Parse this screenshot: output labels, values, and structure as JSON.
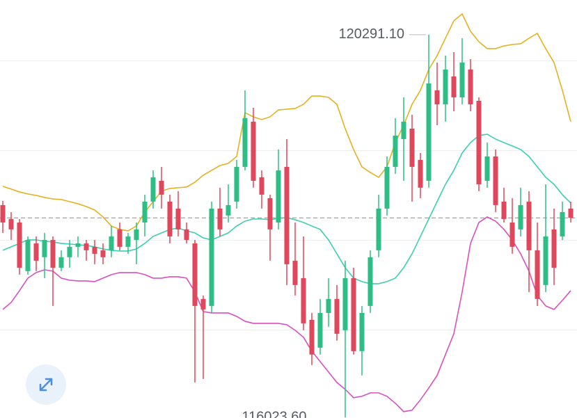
{
  "chart_data": {
    "type": "candlestick",
    "ylim": [
      116019,
      120678
    ],
    "gridlines": [
      117000,
      118000,
      119000,
      120000
    ],
    "last_price": 118250,
    "up_color": "#2ebd85",
    "down_color": "#e0475a",
    "open": [
      118392,
      118237,
      118198,
      117656,
      117965,
      117811,
      118004,
      117694,
      117811,
      117927,
      117965,
      117927,
      117888,
      117888,
      118121,
      117927,
      118004,
      118198,
      118431,
      118663,
      118431,
      118353,
      118121,
      117965,
      117346,
      117268,
      118353,
      118276,
      118431,
      118818,
      119322,
      118702,
      118469,
      118198,
      118818,
      117772,
      117578,
      117113,
      116803,
      117190,
      117346,
      116997,
      117578,
      116764,
      117268,
      117888,
      118353,
      118818,
      119128,
      119244,
      118896,
      118663,
      119671,
      119515,
      119826,
      119593,
      119903,
      119554,
      118663,
      118934,
      118431,
      118198,
      118121,
      118431,
      117888,
      117501,
      118121,
      118043,
      118353
    ],
    "high": [
      118440,
      118314,
      118237,
      118043,
      118043,
      118082,
      118043,
      117888,
      118004,
      118043,
      118004,
      118004,
      117965,
      118159,
      118198,
      118082,
      118198,
      118508,
      118779,
      118818,
      118508,
      118547,
      118198,
      118004,
      117384,
      118431,
      118586,
      118624,
      118896,
      119671,
      119477,
      118779,
      118508,
      119012,
      119128,
      118198,
      118043,
      117190,
      117346,
      117578,
      117501,
      117772,
      117694,
      117268,
      117888,
      118508,
      118934,
      119361,
      119593,
      119399,
      118973,
      120291.1,
      119981,
      120058,
      120097,
      120252,
      120019,
      119593,
      119089,
      119012,
      118586,
      118469,
      118586,
      118547,
      118198,
      118624,
      118353,
      118431,
      118431
    ],
    "low": [
      118082,
      118004,
      117617,
      117617,
      117656,
      117578,
      117268,
      117656,
      117694,
      117811,
      117772,
      117733,
      117733,
      117811,
      117888,
      117849,
      117733,
      118043,
      118353,
      118353,
      117965,
      118043,
      117965,
      116415,
      116454,
      117190,
      118043,
      118198,
      118353,
      118779,
      118586,
      118353,
      117772,
      118121,
      117501,
      117384,
      116997,
      116609,
      116726,
      117036,
      116881,
      116023.6,
      116726,
      116493,
      117190,
      117811,
      118276,
      118740,
      118663,
      118431,
      118469,
      118586,
      119283,
      119322,
      119438,
      119515,
      119438,
      118547,
      118586,
      118314,
      118198,
      117849,
      118043,
      117423,
      117268,
      117423,
      117501,
      118004,
      118198
    ],
    "close": [
      118198,
      118121,
      117694,
      118004,
      117772,
      118004,
      117694,
      117811,
      117927,
      117965,
      117888,
      117849,
      117811,
      118043,
      117927,
      118043,
      118121,
      118431,
      118702,
      118508,
      118043,
      118121,
      118004,
      117268,
      117229,
      118353,
      118121,
      118392,
      118818,
      119361,
      118663,
      118508,
      118121,
      118779,
      117733,
      117501,
      117074,
      116726,
      117190,
      117346,
      116958,
      117578,
      116764,
      117190,
      117811,
      118353,
      118818,
      119167,
      119322,
      118818,
      118586,
      119748,
      119515,
      119903,
      119593,
      119981,
      119515,
      118624,
      118934,
      118392,
      118237,
      117927,
      118392,
      117888,
      117346,
      118043,
      117694,
      118314,
      118250
    ],
    "bands": [
      {
        "color": "#e6b120",
        "values": [
          118601,
          118570,
          118539,
          118516,
          118500,
          118477,
          118461,
          118454,
          118431,
          118407,
          118376,
          118337,
          118260,
          118159,
          118121,
          118105,
          118159,
          118314,
          118431,
          118547,
          118578,
          118586,
          118593,
          118647,
          118725,
          118779,
          118833,
          118857,
          118934,
          119422,
          119376,
          119345,
          119376,
          119453,
          119461,
          119469,
          119515,
          119608,
          119608,
          119593,
          119515,
          119244,
          119012,
          118818,
          118756,
          118702,
          118818,
          119089,
          119283,
          119515,
          119671,
          119903,
          120058,
          120252,
          120445,
          120523,
          120329,
          120213,
          120136,
          120136,
          120166,
          120182,
          120190,
          120252,
          120306,
          120136,
          119981,
          119671,
          119322
        ]
      },
      {
        "color": "#3ccfb0",
        "values": [
          117888,
          117927,
          117965,
          118004,
          118004,
          117989,
          117981,
          117965,
          117958,
          117950,
          117942,
          117927,
          117903,
          117888,
          117880,
          117880,
          117903,
          117965,
          118043,
          118082,
          118121,
          118136,
          118105,
          118082,
          118027,
          118004,
          118043,
          118082,
          118159,
          118213,
          118237,
          118237,
          118229,
          118244,
          118252,
          118229,
          118198,
          118159,
          118121,
          118004,
          117849,
          117694,
          117578,
          117539,
          117516,
          117516,
          117539,
          117578,
          117694,
          117849,
          118043,
          118237,
          118431,
          118624,
          118779,
          118973,
          119089,
          119167,
          119182,
          119128,
          119089,
          119051,
          119012,
          118934,
          118818,
          118702,
          118624,
          118508,
          118415
        ]
      },
      {
        "color": "#d94fbf",
        "values": [
          117229,
          117307,
          117438,
          117578,
          117640,
          117671,
          117656,
          117578,
          117555,
          117547,
          117547,
          117539,
          117578,
          117617,
          117640,
          117640,
          117640,
          117617,
          117578,
          117578,
          117593,
          117593,
          117578,
          117423,
          117206,
          117190,
          117190,
          117190,
          117152,
          117097,
          117074,
          117074,
          117074,
          117074,
          117059,
          116997,
          116919,
          116764,
          116648,
          116532,
          116415,
          116338,
          116245,
          116261,
          116299,
          116299,
          116261,
          116183,
          116090,
          116106,
          116222,
          116353,
          116493,
          116726,
          116958,
          117423,
          117965,
          118198,
          118260,
          118213,
          118121,
          118004,
          117849,
          117656,
          117384,
          117268,
          117229,
          117330,
          117438
        ]
      }
    ],
    "high_label": {
      "value": 120291.1,
      "label": "120291.10"
    },
    "low_label": {
      "value": 116023.6,
      "label": "116023.60"
    }
  }
}
